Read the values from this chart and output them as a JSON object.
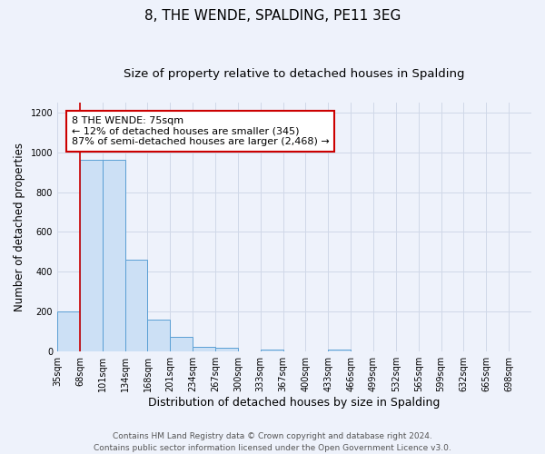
{
  "title": "8, THE WENDE, SPALDING, PE11 3EG",
  "subtitle": "Size of property relative to detached houses in Spalding",
  "xlabel": "Distribution of detached houses by size in Spalding",
  "ylabel": "Number of detached properties",
  "categories": [
    "35sqm",
    "68sqm",
    "101sqm",
    "134sqm",
    "168sqm",
    "201sqm",
    "234sqm",
    "267sqm",
    "300sqm",
    "333sqm",
    "367sqm",
    "400sqm",
    "433sqm",
    "466sqm",
    "499sqm",
    "532sqm",
    "565sqm",
    "599sqm",
    "632sqm",
    "665sqm",
    "698sqm"
  ],
  "values": [
    200,
    960,
    960,
    460,
    160,
    72,
    22,
    18,
    0,
    10,
    0,
    0,
    10,
    0,
    0,
    0,
    0,
    0,
    0,
    0,
    0
  ],
  "bar_color": "#cce0f5",
  "bar_edge_color": "#5a9fd4",
  "red_line_x": 1.0,
  "annotation_text_line1": "8 THE WENDE: 75sqm",
  "annotation_text_line2": "← 12% of detached houses are smaller (345)",
  "annotation_text_line3": "87% of semi-detached houses are larger (2,468) →",
  "annotation_box_color": "#ffffff",
  "annotation_box_edge_color": "#cc0000",
  "red_line_color": "#cc0000",
  "ylim": [
    0,
    1250
  ],
  "yticks": [
    0,
    200,
    400,
    600,
    800,
    1000,
    1200
  ],
  "grid_color": "#d0d8e8",
  "background_color": "#eef2fb",
  "footer_line1": "Contains HM Land Registry data © Crown copyright and database right 2024.",
  "footer_line2": "Contains public sector information licensed under the Open Government Licence v3.0.",
  "title_fontsize": 11,
  "subtitle_fontsize": 9.5,
  "xlabel_fontsize": 9,
  "ylabel_fontsize": 8.5,
  "tick_fontsize": 7,
  "annotation_fontsize": 8,
  "footer_fontsize": 6.5
}
